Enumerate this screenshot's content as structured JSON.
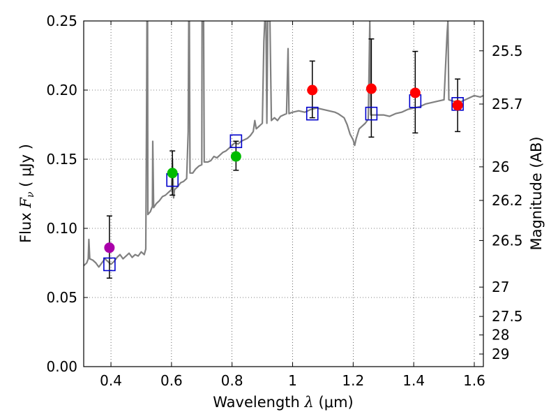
{
  "chart_data": {
    "type": "scatter",
    "xlabel": "Wavelength  λ (μm)",
    "xlabel_prefix": "Wavelength  ",
    "xlabel_symbol": "λ",
    "xlabel_unit": "(μm)",
    "ylabel": "Flux  Fν ( μJy )",
    "ylabel_prefix": "Flux  ",
    "ylabel_symbol": "F",
    "ylabel_sub": "ν",
    "ylabel_unit": "( μJy )",
    "y2label": "Magnitude (AB)",
    "xlim": [
      0.31,
      1.63
    ],
    "ylim": [
      0.0,
      0.25
    ],
    "grid": true,
    "x_ticks": [
      {
        "value": 0.4,
        "label": "0.4"
      },
      {
        "value": 0.6,
        "label": "0.6"
      },
      {
        "value": 0.8,
        "label": "0.8"
      },
      {
        "value": 1.0,
        "label": "1"
      },
      {
        "value": 1.2,
        "label": "1.2"
      },
      {
        "value": 1.4,
        "label": "1.4"
      },
      {
        "value": 1.6,
        "label": "1.6"
      }
    ],
    "y_ticks": [
      {
        "value": 0.0,
        "label": "0.00"
      },
      {
        "value": 0.05,
        "label": "0.05"
      },
      {
        "value": 0.1,
        "label": "0.10"
      },
      {
        "value": 0.15,
        "label": "0.15"
      },
      {
        "value": 0.2,
        "label": "0.20"
      },
      {
        "value": 0.25,
        "label": "0.25"
      }
    ],
    "y2_ticks": [
      {
        "flux": 0.2284,
        "label": "25.5"
      },
      {
        "flux": 0.1899,
        "label": "25.7"
      },
      {
        "flux": 0.1445,
        "label": "26"
      },
      {
        "flux": 0.1202,
        "label": "26.2"
      },
      {
        "flux": 0.0912,
        "label": "26.5"
      },
      {
        "flux": 0.0575,
        "label": "27"
      },
      {
        "flux": 0.0363,
        "label": "27.5"
      },
      {
        "flux": 0.0229,
        "label": "28"
      },
      {
        "flux": 0.0091,
        "label": "29"
      }
    ],
    "model_spectrum": {
      "color": "#808080",
      "points": [
        [
          0.31,
          0.073
        ],
        [
          0.32,
          0.075
        ],
        [
          0.325,
          0.078
        ],
        [
          0.327,
          0.092
        ],
        [
          0.33,
          0.078
        ],
        [
          0.34,
          0.077
        ],
        [
          0.35,
          0.075
        ],
        [
          0.36,
          0.072
        ],
        [
          0.37,
          0.075
        ],
        [
          0.38,
          0.078
        ],
        [
          0.39,
          0.076
        ],
        [
          0.4,
          0.074
        ],
        [
          0.41,
          0.076
        ],
        [
          0.42,
          0.079
        ],
        [
          0.43,
          0.081
        ],
        [
          0.44,
          0.078
        ],
        [
          0.45,
          0.08
        ],
        [
          0.46,
          0.082
        ],
        [
          0.47,
          0.079
        ],
        [
          0.48,
          0.081
        ],
        [
          0.49,
          0.08
        ],
        [
          0.5,
          0.083
        ],
        [
          0.51,
          0.081
        ],
        [
          0.515,
          0.085
        ],
        [
          0.518,
          0.2
        ],
        [
          0.519,
          0.25
        ],
        [
          0.521,
          0.25
        ],
        [
          0.522,
          0.11
        ],
        [
          0.53,
          0.112
        ],
        [
          0.537,
          0.116
        ],
        [
          0.538,
          0.163
        ],
        [
          0.541,
          0.115
        ],
        [
          0.55,
          0.118
        ],
        [
          0.56,
          0.12
        ],
        [
          0.57,
          0.123
        ],
        [
          0.58,
          0.124
        ],
        [
          0.59,
          0.126
        ],
        [
          0.6,
          0.128
        ],
        [
          0.603,
          0.15
        ],
        [
          0.607,
          0.122
        ],
        [
          0.61,
          0.128
        ],
        [
          0.62,
          0.13
        ],
        [
          0.63,
          0.133
        ],
        [
          0.64,
          0.134
        ],
        [
          0.65,
          0.136
        ],
        [
          0.655,
          0.17
        ],
        [
          0.657,
          0.25
        ],
        [
          0.659,
          0.25
        ],
        [
          0.661,
          0.14
        ],
        [
          0.67,
          0.14
        ],
        [
          0.68,
          0.143
        ],
        [
          0.69,
          0.145
        ],
        [
          0.7,
          0.146
        ],
        [
          0.701,
          0.25
        ],
        [
          0.706,
          0.25
        ],
        [
          0.708,
          0.148
        ],
        [
          0.72,
          0.148
        ],
        [
          0.73,
          0.149
        ],
        [
          0.74,
          0.152
        ],
        [
          0.75,
          0.151
        ],
        [
          0.76,
          0.153
        ],
        [
          0.77,
          0.155
        ],
        [
          0.78,
          0.156
        ],
        [
          0.79,
          0.158
        ],
        [
          0.8,
          0.16
        ],
        [
          0.81,
          0.162
        ],
        [
          0.82,
          0.161
        ],
        [
          0.83,
          0.163
        ],
        [
          0.84,
          0.164
        ],
        [
          0.85,
          0.165
        ],
        [
          0.86,
          0.167
        ],
        [
          0.87,
          0.17
        ],
        [
          0.875,
          0.178
        ],
        [
          0.88,
          0.172
        ],
        [
          0.89,
          0.174
        ],
        [
          0.9,
          0.176
        ],
        [
          0.905,
          0.235
        ],
        [
          0.908,
          0.25
        ],
        [
          0.912,
          0.25
        ],
        [
          0.915,
          0.176
        ],
        [
          0.918,
          0.25
        ],
        [
          0.925,
          0.25
        ],
        [
          0.93,
          0.178
        ],
        [
          0.94,
          0.18
        ],
        [
          0.95,
          0.178
        ],
        [
          0.96,
          0.181
        ],
        [
          0.97,
          0.182
        ],
        [
          0.98,
          0.183
        ],
        [
          0.985,
          0.23
        ],
        [
          0.988,
          0.183
        ],
        [
          1.0,
          0.184
        ],
        [
          1.02,
          0.185
        ],
        [
          1.04,
          0.184
        ],
        [
          1.06,
          0.186
        ],
        [
          1.08,
          0.187
        ],
        [
          1.1,
          0.186
        ],
        [
          1.12,
          0.185
        ],
        [
          1.14,
          0.184
        ],
        [
          1.15,
          0.183
        ],
        [
          1.17,
          0.18
        ],
        [
          1.18,
          0.175
        ],
        [
          1.19,
          0.168
        ],
        [
          1.2,
          0.164
        ],
        [
          1.205,
          0.16
        ],
        [
          1.21,
          0.165
        ],
        [
          1.22,
          0.172
        ],
        [
          1.24,
          0.176
        ],
        [
          1.25,
          0.179
        ],
        [
          1.255,
          0.25
        ],
        [
          1.258,
          0.182
        ],
        [
          1.27,
          0.182
        ],
        [
          1.3,
          0.182
        ],
        [
          1.32,
          0.181
        ],
        [
          1.34,
          0.183
        ],
        [
          1.36,
          0.184
        ],
        [
          1.38,
          0.186
        ],
        [
          1.4,
          0.187
        ],
        [
          1.42,
          0.188
        ],
        [
          1.44,
          0.19
        ],
        [
          1.46,
          0.191
        ],
        [
          1.48,
          0.192
        ],
        [
          1.5,
          0.193
        ],
        [
          1.51,
          0.24
        ],
        [
          1.513,
          0.25
        ],
        [
          1.516,
          0.193
        ],
        [
          1.53,
          0.192
        ],
        [
          1.55,
          0.191
        ],
        [
          1.57,
          0.193
        ],
        [
          1.58,
          0.194
        ],
        [
          1.6,
          0.196
        ],
        [
          1.62,
          0.195
        ],
        [
          1.63,
          0.196
        ]
      ]
    },
    "observed": [
      {
        "x": 0.395,
        "y": 0.086,
        "yerr_low": 0.064,
        "yerr_high": 0.109,
        "color": "#aa00aa"
      },
      {
        "x": 0.603,
        "y": 0.14,
        "yerr_low": 0.124,
        "yerr_high": 0.156,
        "color": "#00bb00"
      },
      {
        "x": 0.813,
        "y": 0.152,
        "yerr_low": 0.142,
        "yerr_high": 0.163,
        "color": "#00bb00"
      },
      {
        "x": 1.065,
        "y": 0.2,
        "yerr_low": 0.18,
        "yerr_high": 0.221,
        "color": "#ff0000"
      },
      {
        "x": 1.26,
        "y": 0.201,
        "yerr_low": 0.166,
        "yerr_high": 0.237,
        "color": "#ff0000"
      },
      {
        "x": 1.405,
        "y": 0.198,
        "yerr_low": 0.169,
        "yerr_high": 0.228,
        "color": "#ff0000"
      },
      {
        "x": 1.545,
        "y": 0.189,
        "yerr_low": 0.17,
        "yerr_high": 0.208,
        "color": "#ff0000"
      }
    ],
    "model_photometry": {
      "color": "#0000cc",
      "points": [
        {
          "x": 0.395,
          "y": 0.074
        },
        {
          "x": 0.603,
          "y": 0.135
        },
        {
          "x": 0.813,
          "y": 0.163
        },
        {
          "x": 1.065,
          "y": 0.183
        },
        {
          "x": 1.26,
          "y": 0.183
        },
        {
          "x": 1.405,
          "y": 0.192
        },
        {
          "x": 1.545,
          "y": 0.19
        }
      ]
    }
  }
}
